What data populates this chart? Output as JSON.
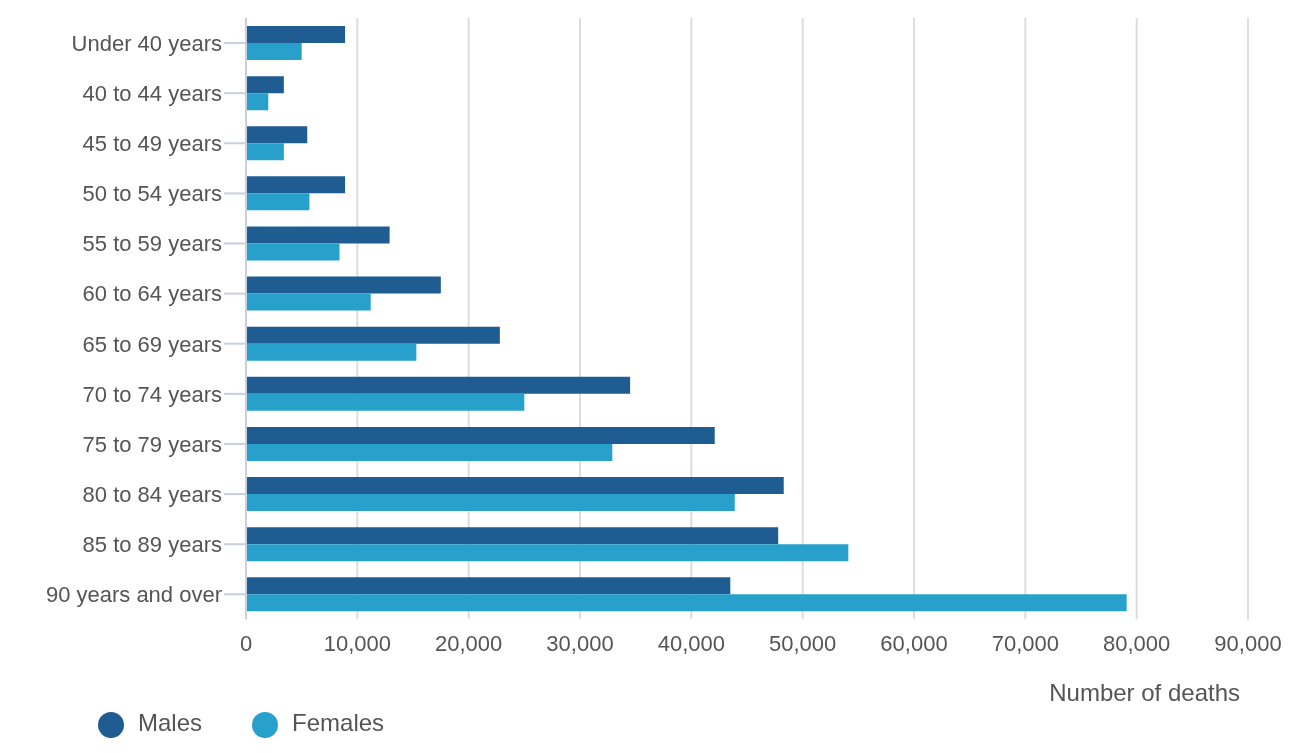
{
  "chart_data": {
    "type": "bar",
    "orientation": "horizontal",
    "xlabel": "Number of deaths",
    "categories": [
      "Under 40 years",
      "40 to 44 years",
      "45 to 49 years",
      "50 to 54 years",
      "55 to 59 years",
      "60 to 64 years",
      "65 to 69 years",
      "70 to 74 years",
      "75 to 79 years",
      "80 to 84 years",
      "85 to 89 years",
      "90 years and over"
    ],
    "series": [
      {
        "name": "Males",
        "color": "#1f5c92",
        "values": [
          8900,
          3400,
          5500,
          8900,
          12900,
          17500,
          22800,
          34500,
          42100,
          48300,
          47800,
          43500
        ]
      },
      {
        "name": "Females",
        "color": "#27a0cc",
        "values": [
          5000,
          2000,
          3400,
          5700,
          8400,
          11200,
          15300,
          25000,
          32900,
          43900,
          54100,
          79100
        ]
      }
    ],
    "xlim": [
      0,
      90000
    ],
    "xticks": [
      0,
      {
        "value": 10000,
        "label": "10,000"
      },
      {
        "value": 20000,
        "label": "20,000"
      },
      {
        "value": 30000,
        "label": "30,000"
      },
      {
        "value": 40000,
        "label": "40,000"
      },
      {
        "value": 50000,
        "label": "50,000"
      },
      {
        "value": 60000,
        "label": "60,000"
      },
      {
        "value": 70000,
        "label": "70,000"
      },
      {
        "value": 80000,
        "label": "80,000"
      },
      {
        "value": 90000,
        "label": "90,000"
      }
    ],
    "grid": "x",
    "legend": "bottom left"
  }
}
